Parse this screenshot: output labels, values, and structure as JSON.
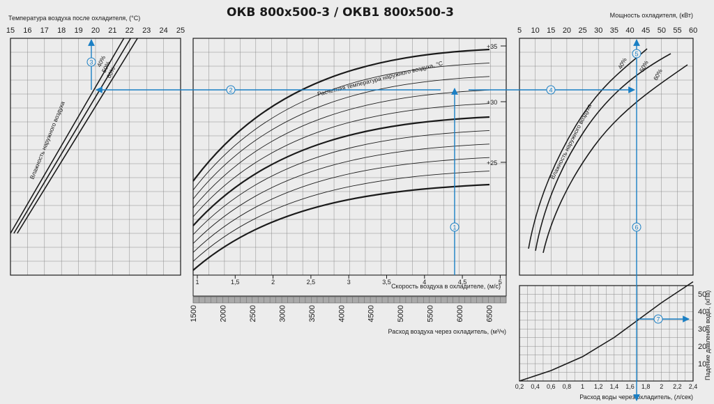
{
  "title": "ОКВ 800x500-3 / ОКВ1 800x500-3",
  "accent_color": "#1a7fc4",
  "panels": {
    "left": {
      "axis_title": "Температура воздуха после охладителя, (°C)",
      "ticks": [
        "15",
        "16",
        "17",
        "18",
        "19",
        "20",
        "21",
        "22",
        "23",
        "24",
        "25"
      ],
      "curve_caption": "Влажность наружного воздуха",
      "curve_labels": [
        "40%",
        "50%",
        "60%"
      ]
    },
    "center": {
      "curve_caption": "Расчетная температура наружного воздуха, °C",
      "temp_labels": [
        "+35",
        "+30",
        "+25"
      ],
      "velocity_ticks": [
        "1",
        "1,5",
        "2",
        "2,5",
        "3",
        "3,5",
        "4",
        "4,5",
        "5"
      ],
      "velocity_label": "Скорость воздуха в охладителе, (м/с)",
      "flow_ticks": [
        "1500",
        "2000",
        "2500",
        "3000",
        "3500",
        "4000",
        "4500",
        "5000",
        "5500",
        "6000",
        "6500"
      ],
      "flow_label": "Расход воздуха через охладитель, (м³/ч)"
    },
    "right_top": {
      "axis_title": "Мощность охладителя, (кВт)",
      "ticks": [
        "5",
        "10",
        "15",
        "20",
        "25",
        "30",
        "35",
        "40",
        "45",
        "50",
        "55",
        "60"
      ],
      "curve_caption": "Влажность наружного воздуха",
      "curve_labels": [
        "40%",
        "50%",
        "60%"
      ]
    },
    "right_bottom": {
      "y_ticks": [
        "10",
        "20",
        "30",
        "40",
        "50"
      ],
      "y_label": "Падение давления воды, (кПа)",
      "x_ticks": [
        "0,2",
        "0,4",
        "0,6",
        "0,8",
        "1",
        "1,2",
        "1,4",
        "1,6",
        "1,8",
        "2",
        "2,2",
        "2,4"
      ],
      "x_label": "Расход воды через охладитель, (л/сек)"
    }
  },
  "step_markers": [
    "1",
    "2",
    "3",
    "4",
    "5",
    "6",
    "7"
  ],
  "chart_data": [
    {
      "type": "line",
      "title": "Температура воздуха после охладителя, (°C)",
      "xlabel": "Температура воздуха после охладителя, (°C)",
      "xlim": [
        15,
        25
      ],
      "series": [
        {
          "name": "40%",
          "x": [
            15,
            20.6
          ],
          "y": [
            0.0,
            1.0
          ]
        },
        {
          "name": "50%",
          "x": [
            15.2,
            21.0
          ],
          "y": [
            0.0,
            1.0
          ]
        },
        {
          "name": "60%",
          "x": [
            15.4,
            21.4
          ],
          "y": [
            0.0,
            1.0
          ]
        }
      ]
    },
    {
      "type": "line",
      "xlabel": "Скорость воздуха в охладителе, (м/с)",
      "xlim": [
        1,
        5
      ],
      "x2label": "Расход воздуха через охладитель, (м³/ч)",
      "x2lim": [
        1500,
        6800
      ],
      "series_labels": [
        "+25",
        "+30",
        "+35"
      ],
      "curves": 11
    },
    {
      "type": "line",
      "title": "Мощность охладителя, (кВт)",
      "xlabel": "Мощность охладителя, (кВт)",
      "xlim": [
        5,
        60
      ],
      "series": [
        {
          "name": "40%",
          "x": [
            5,
            47
          ]
        },
        {
          "name": "50%",
          "x": [
            7,
            53
          ]
        },
        {
          "name": "60%",
          "x": [
            9,
            59
          ]
        }
      ]
    },
    {
      "type": "line",
      "xlabel": "Расход воды через охладитель, (л/сек)",
      "ylabel": "Падение давления воды, (кПа)",
      "xlim": [
        0.2,
        2.4
      ],
      "ylim": [
        0,
        55
      ],
      "series": [
        {
          "x": [
            0.2,
            0.6,
            1.0,
            1.4,
            1.7,
            2.0,
            2.4
          ],
          "y": [
            0,
            6,
            14,
            25,
            35,
            45,
            57
          ]
        }
      ]
    }
  ]
}
